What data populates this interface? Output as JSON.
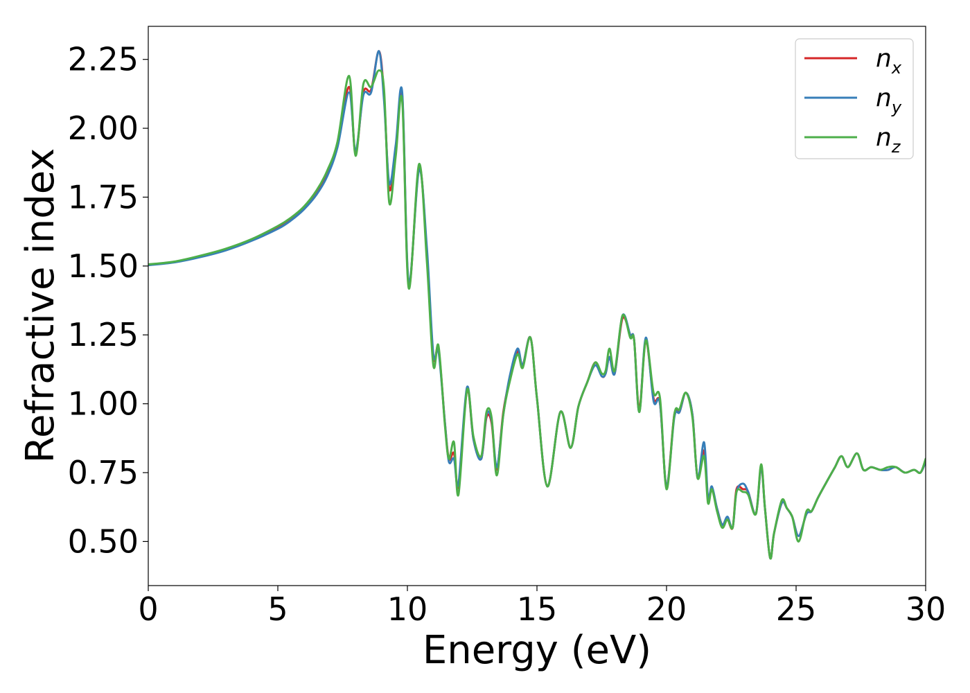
{
  "chart_data": {
    "type": "line",
    "xlabel": "Energy (eV)",
    "ylabel": "Refractive index",
    "xlim": [
      0,
      30
    ],
    "ylim": [
      0.34,
      2.37
    ],
    "xticks": [
      0,
      5,
      10,
      15,
      20,
      25,
      30
    ],
    "xtick_labels": [
      "0",
      "5",
      "10",
      "15",
      "20",
      "25",
      "30"
    ],
    "yticks": [
      0.5,
      0.75,
      1.0,
      1.25,
      1.5,
      1.75,
      2.0,
      2.25
    ],
    "ytick_labels": [
      "0.50",
      "0.75",
      "1.00",
      "1.25",
      "1.50",
      "1.75",
      "2.00",
      "2.25"
    ],
    "grid": false,
    "legend_position": "top-right",
    "series": [
      {
        "name": "n_x",
        "legend_base": "n",
        "legend_sub": "x",
        "color": "#d62728",
        "x": [
          0,
          1,
          2,
          3,
          4,
          5,
          5.5,
          6,
          6.5,
          6.9,
          7.3,
          7.75,
          8.0,
          8.3,
          8.6,
          8.9,
          9.1,
          9.3,
          9.55,
          9.8,
          10.05,
          10.45,
          10.75,
          11.0,
          11.2,
          11.45,
          11.6,
          11.8,
          11.97,
          12.3,
          12.55,
          12.85,
          13.05,
          13.25,
          13.45,
          13.7,
          13.95,
          14.25,
          14.45,
          14.75,
          15.0,
          15.4,
          15.9,
          16.3,
          16.6,
          16.95,
          17.25,
          17.5,
          17.65,
          17.8,
          18.0,
          18.3,
          18.6,
          18.75,
          18.95,
          19.2,
          19.5,
          19.75,
          20.0,
          20.3,
          20.5,
          20.75,
          21.0,
          21.2,
          21.45,
          21.6,
          21.75,
          21.95,
          22.15,
          22.35,
          22.55,
          22.7,
          22.95,
          23.15,
          23.45,
          23.65,
          23.8,
          24.0,
          24.15,
          24.45,
          24.65,
          24.85,
          25.1,
          25.4,
          25.6,
          25.85,
          26.2,
          26.5,
          26.75,
          27.0,
          27.35,
          27.6,
          27.9,
          28.25,
          28.55,
          28.85,
          29.2,
          29.55,
          29.8,
          30.0
        ],
        "y": [
          1.505,
          1.515,
          1.535,
          1.56,
          1.595,
          1.64,
          1.67,
          1.71,
          1.765,
          1.83,
          1.94,
          2.15,
          1.91,
          2.13,
          2.14,
          2.28,
          2.12,
          1.78,
          1.92,
          2.12,
          1.43,
          1.86,
          1.55,
          1.17,
          1.2,
          0.93,
          0.8,
          0.82,
          0.7,
          1.05,
          0.87,
          0.8,
          0.95,
          0.93,
          0.76,
          0.97,
          1.09,
          1.19,
          1.14,
          1.24,
          1.02,
          0.7,
          0.97,
          0.84,
          0.99,
          1.08,
          1.15,
          1.1,
          1.11,
          1.17,
          1.11,
          1.31,
          1.25,
          1.23,
          0.98,
          1.23,
          1.02,
          1.0,
          0.7,
          0.96,
          0.97,
          1.04,
          0.96,
          0.73,
          0.83,
          0.66,
          0.69,
          0.62,
          0.56,
          0.58,
          0.55,
          0.69,
          0.69,
          0.68,
          0.6,
          0.77,
          0.62,
          0.44,
          0.53,
          0.64,
          0.62,
          0.59,
          0.52,
          0.6,
          0.61,
          0.66,
          0.72,
          0.77,
          0.81,
          0.77,
          0.82,
          0.76,
          0.77,
          0.76,
          0.76,
          0.77,
          0.75,
          0.76,
          0.75,
          0.79
        ]
      },
      {
        "name": "n_y",
        "legend_base": "n",
        "legend_sub": "y",
        "color": "#377eb8",
        "x": [
          0,
          1,
          2,
          3,
          4,
          5,
          5.5,
          6,
          6.5,
          6.9,
          7.3,
          7.75,
          8.0,
          8.3,
          8.6,
          8.9,
          9.1,
          9.3,
          9.55,
          9.8,
          10.05,
          10.45,
          10.75,
          11.0,
          11.2,
          11.45,
          11.6,
          11.8,
          11.97,
          12.3,
          12.55,
          12.85,
          13.05,
          13.25,
          13.45,
          13.7,
          13.95,
          14.25,
          14.45,
          14.75,
          15.0,
          15.4,
          15.9,
          16.3,
          16.6,
          16.95,
          17.25,
          17.5,
          17.65,
          17.8,
          18.0,
          18.3,
          18.6,
          18.75,
          18.95,
          19.2,
          19.5,
          19.75,
          20.0,
          20.3,
          20.5,
          20.75,
          21.0,
          21.2,
          21.45,
          21.6,
          21.75,
          21.95,
          22.15,
          22.35,
          22.55,
          22.7,
          22.95,
          23.15,
          23.45,
          23.65,
          23.8,
          24.0,
          24.15,
          24.45,
          24.65,
          24.85,
          25.1,
          25.4,
          25.6,
          25.85,
          26.2,
          26.5,
          26.75,
          27.0,
          27.35,
          27.6,
          27.9,
          28.25,
          28.55,
          28.85,
          29.2,
          29.55,
          29.8,
          30.0
        ],
        "y": [
          1.503,
          1.513,
          1.532,
          1.557,
          1.592,
          1.635,
          1.665,
          1.705,
          1.76,
          1.825,
          1.93,
          2.13,
          1.92,
          2.12,
          2.13,
          2.28,
          2.1,
          1.8,
          1.94,
          2.13,
          1.44,
          1.85,
          1.57,
          1.18,
          1.19,
          0.93,
          0.79,
          0.8,
          0.71,
          1.06,
          0.87,
          0.8,
          0.96,
          0.94,
          0.77,
          0.96,
          1.1,
          1.2,
          1.14,
          1.24,
          1.02,
          0.7,
          0.97,
          0.84,
          0.99,
          1.08,
          1.14,
          1.1,
          1.11,
          1.17,
          1.11,
          1.32,
          1.25,
          1.23,
          0.97,
          1.24,
          1.01,
          1.0,
          0.7,
          0.95,
          0.97,
          1.04,
          0.96,
          0.73,
          0.86,
          0.66,
          0.7,
          0.62,
          0.56,
          0.59,
          0.55,
          0.68,
          0.71,
          0.68,
          0.6,
          0.77,
          0.62,
          0.44,
          0.53,
          0.64,
          0.62,
          0.59,
          0.52,
          0.6,
          0.61,
          0.66,
          0.72,
          0.77,
          0.81,
          0.77,
          0.82,
          0.76,
          0.77,
          0.76,
          0.76,
          0.77,
          0.75,
          0.76,
          0.75,
          0.79
        ]
      },
      {
        "name": "n_z",
        "legend_base": "n",
        "legend_sub": "z",
        "color": "#4daf4a",
        "x": [
          0,
          1,
          2,
          3,
          4,
          5,
          5.5,
          6,
          6.5,
          6.9,
          7.3,
          7.75,
          8.0,
          8.3,
          8.6,
          8.9,
          9.1,
          9.3,
          9.55,
          9.8,
          10.05,
          10.45,
          10.75,
          11.0,
          11.2,
          11.45,
          11.6,
          11.8,
          11.97,
          12.3,
          12.55,
          12.85,
          13.05,
          13.25,
          13.45,
          13.7,
          13.95,
          14.25,
          14.45,
          14.75,
          15.0,
          15.4,
          15.9,
          16.3,
          16.6,
          16.95,
          17.25,
          17.5,
          17.65,
          17.8,
          18.0,
          18.3,
          18.6,
          18.75,
          18.95,
          19.2,
          19.5,
          19.75,
          20.0,
          20.3,
          20.5,
          20.75,
          21.0,
          21.2,
          21.45,
          21.6,
          21.75,
          21.95,
          22.15,
          22.35,
          22.55,
          22.7,
          22.95,
          23.15,
          23.45,
          23.65,
          23.8,
          24.0,
          24.15,
          24.45,
          24.65,
          24.85,
          25.1,
          25.4,
          25.6,
          25.85,
          26.2,
          26.5,
          26.75,
          27.0,
          27.35,
          27.6,
          27.9,
          28.25,
          28.55,
          28.85,
          29.2,
          29.55,
          29.8,
          30.0
        ],
        "y": [
          1.506,
          1.516,
          1.537,
          1.563,
          1.598,
          1.645,
          1.675,
          1.715,
          1.775,
          1.845,
          1.95,
          2.19,
          1.9,
          2.16,
          2.15,
          2.21,
          2.14,
          1.73,
          1.9,
          2.1,
          1.42,
          1.87,
          1.52,
          1.14,
          1.21,
          0.92,
          0.8,
          0.86,
          0.67,
          1.05,
          0.88,
          0.81,
          0.97,
          0.95,
          0.74,
          0.96,
          1.08,
          1.18,
          1.13,
          1.24,
          1.02,
          0.7,
          0.97,
          0.84,
          0.99,
          1.08,
          1.15,
          1.11,
          1.12,
          1.2,
          1.12,
          1.32,
          1.24,
          1.23,
          0.97,
          1.23,
          1.04,
          1.02,
          0.69,
          0.96,
          0.98,
          1.04,
          0.95,
          0.73,
          0.81,
          0.64,
          0.69,
          0.61,
          0.55,
          0.58,
          0.55,
          0.68,
          0.68,
          0.67,
          0.6,
          0.78,
          0.62,
          0.44,
          0.53,
          0.65,
          0.62,
          0.59,
          0.5,
          0.61,
          0.61,
          0.66,
          0.72,
          0.77,
          0.81,
          0.77,
          0.82,
          0.76,
          0.77,
          0.76,
          0.77,
          0.77,
          0.75,
          0.76,
          0.75,
          0.8
        ]
      }
    ]
  }
}
